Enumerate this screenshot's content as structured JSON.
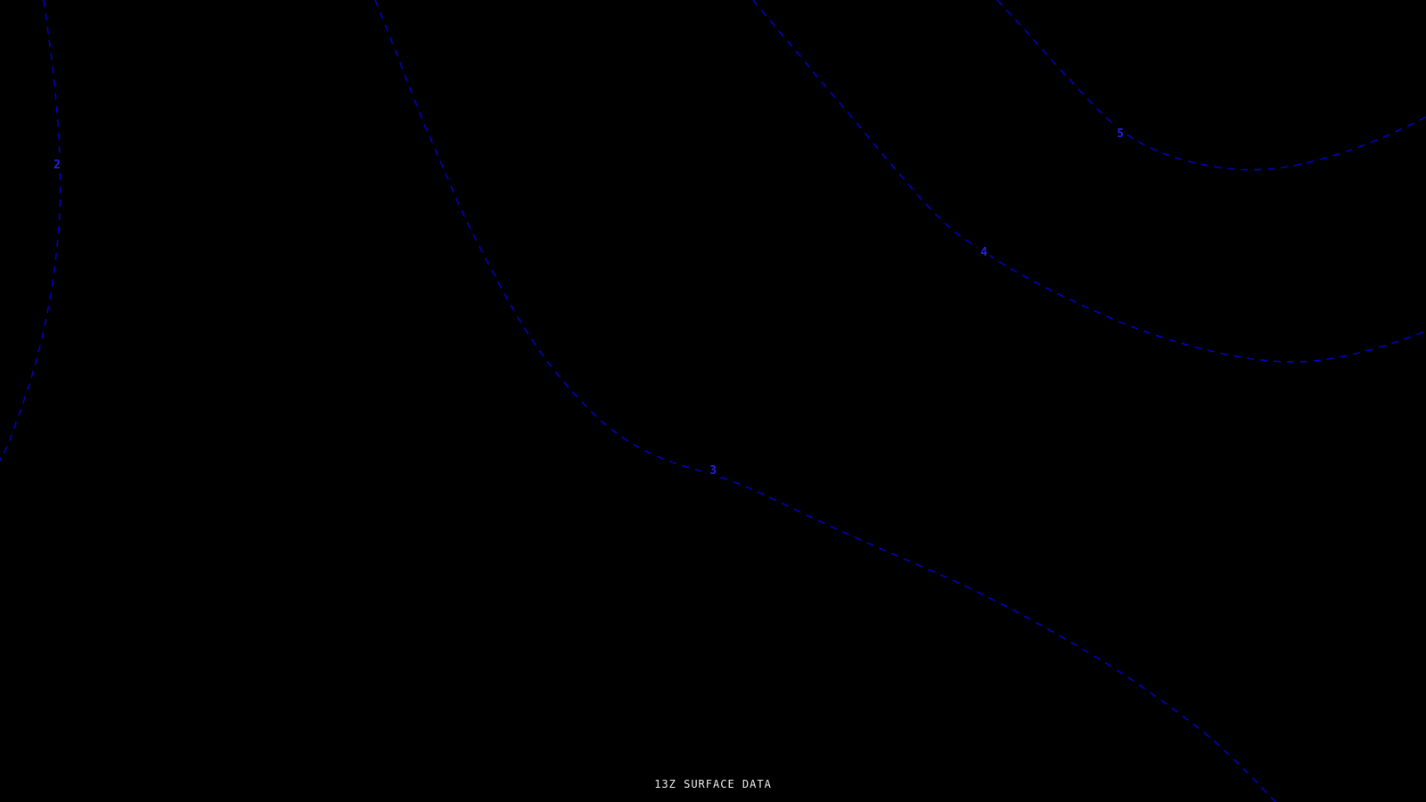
{
  "caption": {
    "text": "13Z SURFACE DATA"
  },
  "colors": {
    "background": "#000000",
    "contour_line": "#0000cd",
    "contour_label": "#2222dd",
    "caption_text": "#ededed"
  },
  "chart_data": {
    "type": "line",
    "chart_kind": "contour-map",
    "title": "13Z SURFACE DATA",
    "background": "#000000",
    "line_color": "#0000cd",
    "label_color": "#2222dd",
    "dash_pattern": "8 7",
    "line_width": 1.5,
    "grid": false,
    "legend": false,
    "xlim": [
      0,
      1600
    ],
    "ylim": [
      0,
      900
    ],
    "contour_values": [
      2,
      3,
      4,
      5
    ],
    "contours": [
      {
        "label": "2",
        "value": 2,
        "label_x": 64,
        "label_y": 184,
        "points": [
          [
            49,
            0
          ],
          [
            57,
            56
          ],
          [
            63,
            112
          ],
          [
            67,
            168
          ],
          [
            68,
            219
          ],
          [
            65,
            270
          ],
          [
            59,
            321
          ],
          [
            49,
            372
          ],
          [
            36,
            423
          ],
          [
            20,
            469
          ],
          [
            6,
            507
          ],
          [
            -4,
            522
          ]
        ]
      },
      {
        "label": "3",
        "value": 3,
        "label_x": 800,
        "label_y": 527,
        "points": [
          [
            421,
            0
          ],
          [
            440,
            47
          ],
          [
            458,
            94
          ],
          [
            476,
            140
          ],
          [
            496,
            185
          ],
          [
            515,
            231
          ],
          [
            537,
            275
          ],
          [
            560,
            319
          ],
          [
            584,
            362
          ],
          [
            612,
            404
          ],
          [
            643,
            441
          ],
          [
            675,
            474
          ],
          [
            711,
            500
          ],
          [
            750,
            518
          ],
          [
            791,
            530
          ],
          [
            831,
            543
          ],
          [
            872,
            562
          ],
          [
            915,
            583
          ],
          [
            959,
            603
          ],
          [
            1007,
            624
          ],
          [
            1058,
            646
          ],
          [
            1109,
            670
          ],
          [
            1160,
            697
          ],
          [
            1211,
            726
          ],
          [
            1262,
            757
          ],
          [
            1313,
            793
          ],
          [
            1359,
            828
          ],
          [
            1399,
            866
          ],
          [
            1428,
            897
          ],
          [
            1442,
            912
          ]
        ]
      },
      {
        "label": "4",
        "value": 4,
        "label_x": 1104,
        "label_y": 282,
        "points": [
          [
            845,
            0
          ],
          [
            868,
            28
          ],
          [
            894,
            58
          ],
          [
            919,
            89
          ],
          [
            947,
            121
          ],
          [
            976,
            156
          ],
          [
            1008,
            194
          ],
          [
            1040,
            231
          ],
          [
            1072,
            262
          ],
          [
            1102,
            281
          ],
          [
            1134,
            302
          ],
          [
            1175,
            324
          ],
          [
            1221,
            346
          ],
          [
            1272,
            368
          ],
          [
            1323,
            385
          ],
          [
            1374,
            398
          ],
          [
            1425,
            406
          ],
          [
            1476,
            406
          ],
          [
            1527,
            396
          ],
          [
            1573,
            382
          ],
          [
            1606,
            369
          ]
        ]
      },
      {
        "label": "5",
        "value": 5,
        "label_x": 1257,
        "label_y": 149,
        "points": [
          [
            1119,
            0
          ],
          [
            1143,
            26
          ],
          [
            1169,
            55
          ],
          [
            1196,
            85
          ],
          [
            1223,
            114
          ],
          [
            1248,
            139
          ],
          [
            1277,
            160
          ],
          [
            1311,
            175
          ],
          [
            1348,
            185
          ],
          [
            1389,
            191
          ],
          [
            1430,
            190
          ],
          [
            1471,
            182
          ],
          [
            1512,
            170
          ],
          [
            1553,
            154
          ],
          [
            1593,
            135
          ],
          [
            1608,
            127
          ]
        ]
      }
    ]
  }
}
